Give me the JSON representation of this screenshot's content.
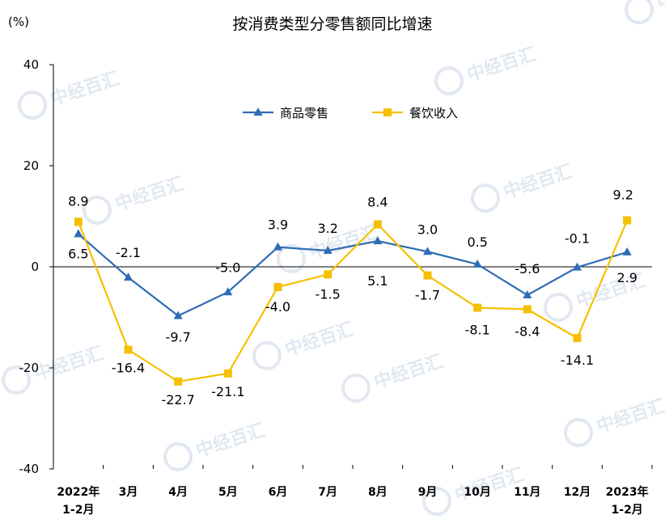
{
  "chart_data": {
    "type": "line",
    "title": "按消费类型分零售额同比增速",
    "unit_label": "(%)",
    "ylim": [
      -40,
      40
    ],
    "yticks": [
      40,
      20,
      0,
      -20,
      -40
    ],
    "categories": [
      [
        "2022年",
        "1-2月"
      ],
      [
        "3月"
      ],
      [
        "4月"
      ],
      [
        "5月"
      ],
      [
        "6月"
      ],
      [
        "7月"
      ],
      [
        "8月"
      ],
      [
        "9月"
      ],
      [
        "10月"
      ],
      [
        "11月"
      ],
      [
        "12月"
      ],
      [
        "2023年",
        "1-2月"
      ]
    ],
    "series": [
      {
        "name": "商品零售",
        "color": "#2E6DB4",
        "marker": "triangle",
        "values": [
          6.5,
          -2.1,
          -9.7,
          -5.0,
          3.9,
          3.2,
          5.1,
          3.0,
          0.5,
          -5.6,
          -0.1,
          2.9
        ],
        "labels": [
          "6.5",
          "-2.1",
          "-9.7",
          "-5.0",
          "3.9",
          "3.2",
          "5.1",
          "3.0",
          "0.5",
          "-5.6",
          "-0.1",
          "2.9"
        ]
      },
      {
        "name": "餐饮收入",
        "color": "#F5C000",
        "marker": "square",
        "values": [
          8.9,
          -16.4,
          -22.7,
          -21.1,
          -4.0,
          -1.5,
          8.4,
          -1.7,
          -8.1,
          -8.4,
          -14.1,
          9.2
        ],
        "labels": [
          "8.9",
          "-16.4",
          "-22.7",
          "-21.1",
          "-4.0",
          "-1.5",
          "8.4",
          "-1.7",
          "-8.1",
          "-8.4",
          "-14.1",
          "9.2"
        ]
      }
    ],
    "legend": "top-left inside plot",
    "grid": false
  },
  "watermark": "中经百汇"
}
